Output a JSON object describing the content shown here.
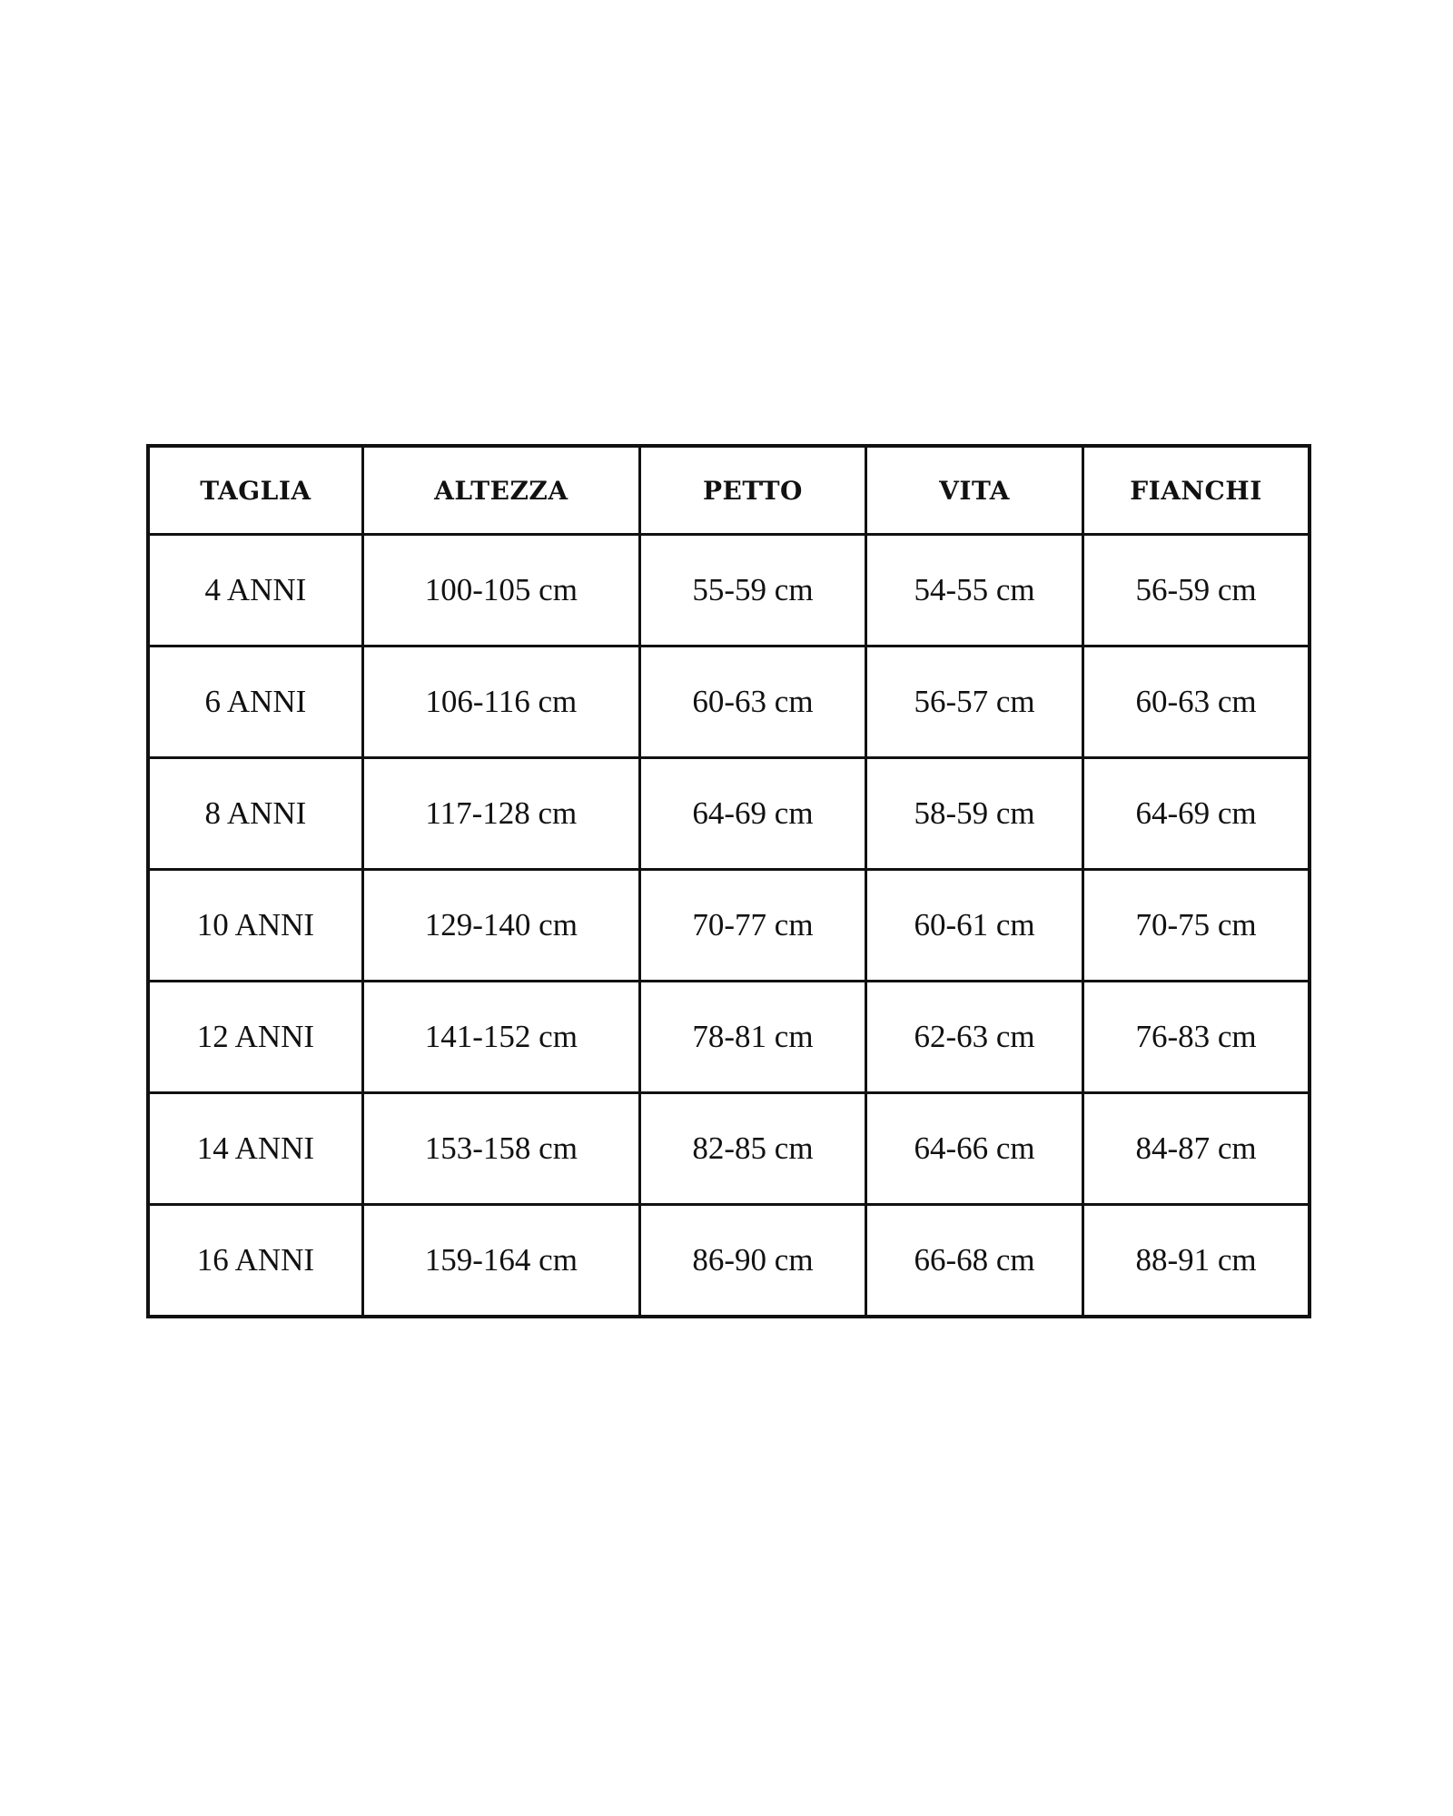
{
  "headers": [
    "TAGLIA",
    "ALTEZZA",
    "PETTO",
    "VITA",
    "FIANCHI"
  ],
  "rows": [
    [
      "4 ANNI",
      "100-105 cm",
      "55-59 cm",
      "54-55 cm",
      "56-59 cm"
    ],
    [
      "6 ANNI",
      "106-116 cm",
      "60-63 cm",
      "56-57 cm",
      "60-63 cm"
    ],
    [
      "8 ANNI",
      "117-128 cm",
      "64-69 cm",
      "58-59 cm",
      "64-69 cm"
    ],
    [
      "10 ANNI",
      "129-140 cm",
      "70-77 cm",
      "60-61 cm",
      "70-75 cm"
    ],
    [
      "12 ANNI",
      "141-152 cm",
      "78-81 cm",
      "62-63 cm",
      "76-83 cm"
    ],
    [
      "14 ANNI",
      "153-158 cm",
      "82-85 cm",
      "64-66 cm",
      "84-87 cm"
    ],
    [
      "16 ANNI",
      "159-164 cm",
      "86-90 cm",
      "66-68 cm",
      "88-91 cm"
    ]
  ]
}
